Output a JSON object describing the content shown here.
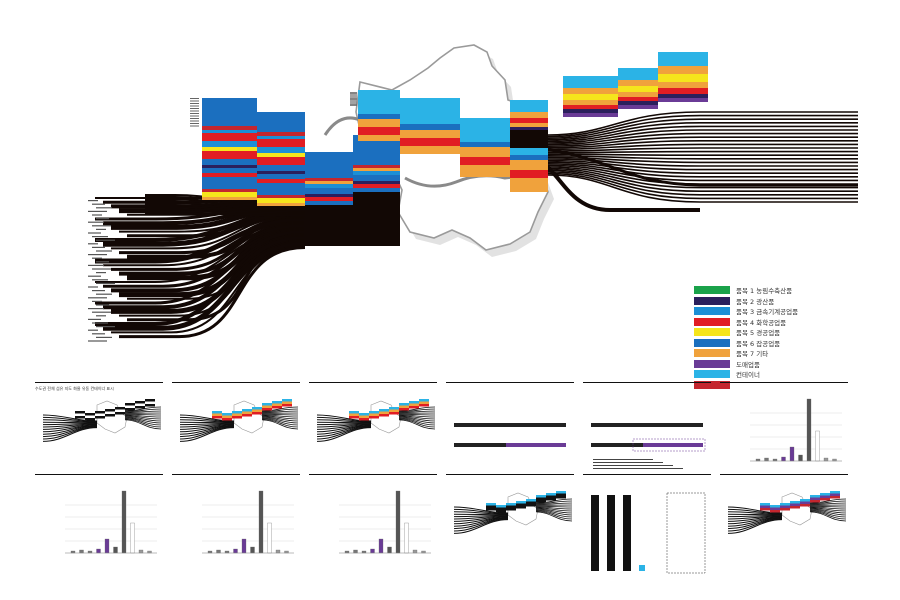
{
  "legend": {
    "items": [
      {
        "label": "품목 1 농림수축산품",
        "color": "#1aa24a"
      },
      {
        "label": "품목 2 광산품",
        "color": "#2b1f5c"
      },
      {
        "label": "품목 3 금속기계공업품",
        "color": "#1c8fd6"
      },
      {
        "label": "품목 4 화학공업품",
        "color": "#e11d23"
      },
      {
        "label": "품목 5 경공업품",
        "color": "#f5e51c"
      },
      {
        "label": "품목 6 잡공업품",
        "color": "#1b6fbf"
      },
      {
        "label": "품목 7 기타",
        "color": "#f0a23c"
      },
      {
        "label": "도매업품",
        "color": "#6a3b96"
      },
      {
        "label": "컨테이너",
        "color": "#2bb3e6"
      },
      {
        "label": "",
        "color": "#c4262e"
      }
    ]
  },
  "colors": {
    "flow": "#120805",
    "map_outline": "#999999",
    "map_shadow": "#c8c8c8",
    "road": "#888888"
  },
  "thumbnails": [
    {
      "id": "t1",
      "caption": "수도권 전체 섬유 지도 화물 유동 컨테이너 표시",
      "type": "flow-gray"
    },
    {
      "id": "t2",
      "caption": "",
      "type": "flow-color"
    },
    {
      "id": "t3",
      "caption": "",
      "type": "flow-color"
    },
    {
      "id": "t4",
      "caption": "",
      "type": "timeline"
    },
    {
      "id": "t5",
      "caption": "",
      "type": "timeline-note"
    },
    {
      "id": "t6",
      "caption": "",
      "type": "bar"
    },
    {
      "id": "t7",
      "caption": "",
      "type": "bar"
    },
    {
      "id": "t8",
      "caption": "",
      "type": "bar"
    },
    {
      "id": "t9",
      "caption": "",
      "type": "bar"
    },
    {
      "id": "t10",
      "caption": "",
      "type": "flow-cyan"
    },
    {
      "id": "t11",
      "caption": "",
      "type": "stack-bar"
    },
    {
      "id": "t12",
      "caption": "",
      "type": "flow-purple"
    }
  ]
}
